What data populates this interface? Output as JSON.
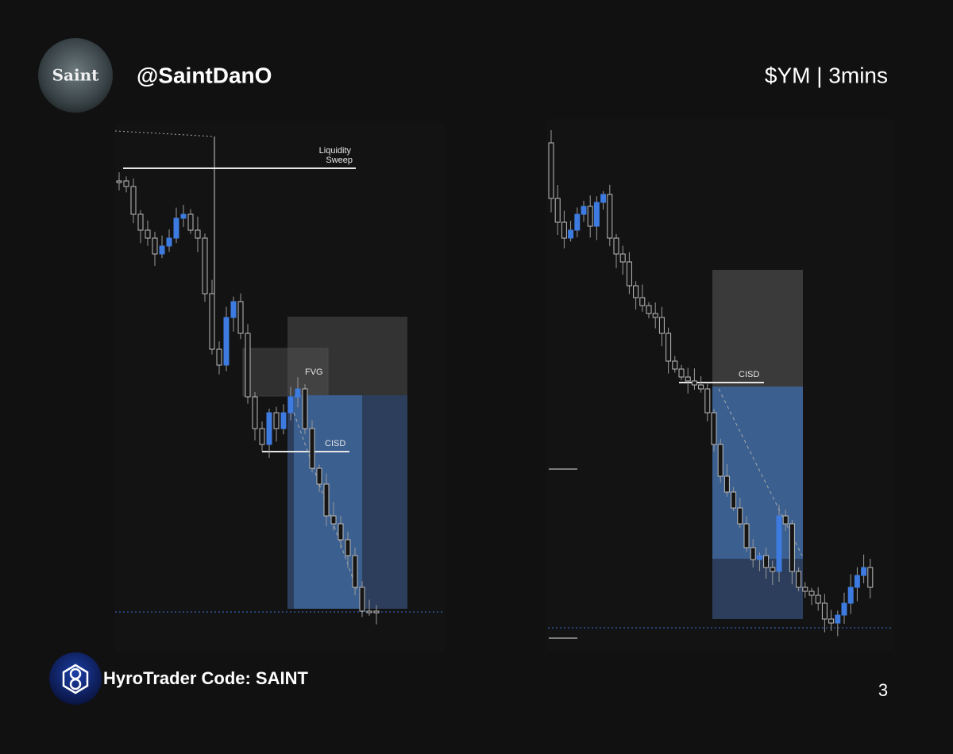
{
  "header": {
    "avatar_text": "Saint",
    "handle": "@SaintDanO",
    "ticker": "$YM | 3mins"
  },
  "left_panel": {
    "annotations": {
      "liquidity_sweep": [
        "Liquidity",
        "Sweep"
      ],
      "fvg": "FVG",
      "cisd": "CISD"
    }
  },
  "right_panel": {
    "annotations": {
      "cisd": "CISD"
    }
  },
  "footer": {
    "sponsor": "HyroTrader Code: SAINT",
    "page": "3"
  }
}
